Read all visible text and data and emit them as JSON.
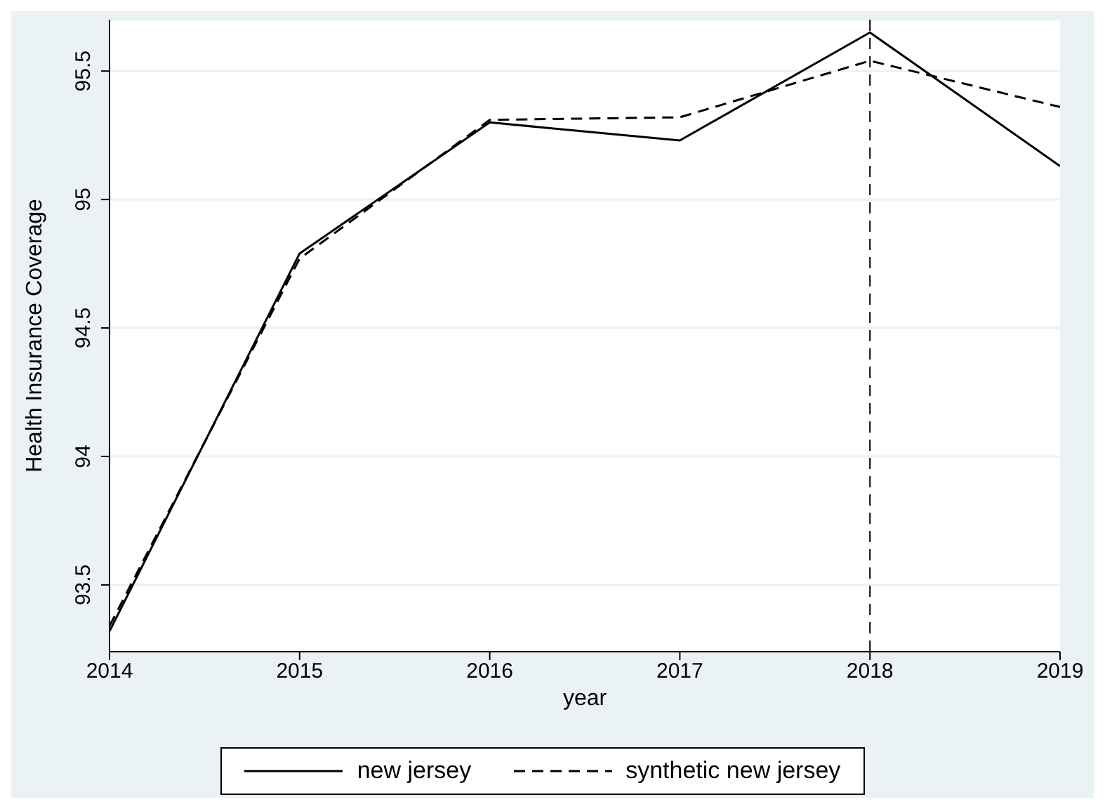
{
  "chart_data": {
    "type": "line",
    "xlabel": "year",
    "ylabel": "Health Insurance Coverage",
    "x": [
      2014,
      2015,
      2016,
      2017,
      2018,
      2019
    ],
    "series": [
      {
        "name": "new jersey",
        "color": "#000000",
        "line_style": "solid",
        "values": [
          93.32,
          94.79,
          95.3,
          95.23,
          95.65,
          95.13
        ]
      },
      {
        "name": "synthetic new jersey",
        "color": "#000000",
        "line_style": "dashed",
        "values": [
          93.34,
          94.77,
          95.31,
          95.32,
          95.54,
          95.36
        ]
      }
    ],
    "xlim": [
      2014,
      2019
    ],
    "xticks": [
      2014,
      2015,
      2016,
      2017,
      2018,
      2019
    ],
    "ylim": [
      93.24,
      95.7
    ],
    "yticks": [
      93.5,
      94,
      94.5,
      95,
      95.5
    ],
    "ref_lines": [
      {
        "axis": "x",
        "value": 2018,
        "line_style": "dashed",
        "color": "#000000"
      }
    ],
    "grid": "y",
    "legend": "bottom",
    "marker": "none"
  }
}
